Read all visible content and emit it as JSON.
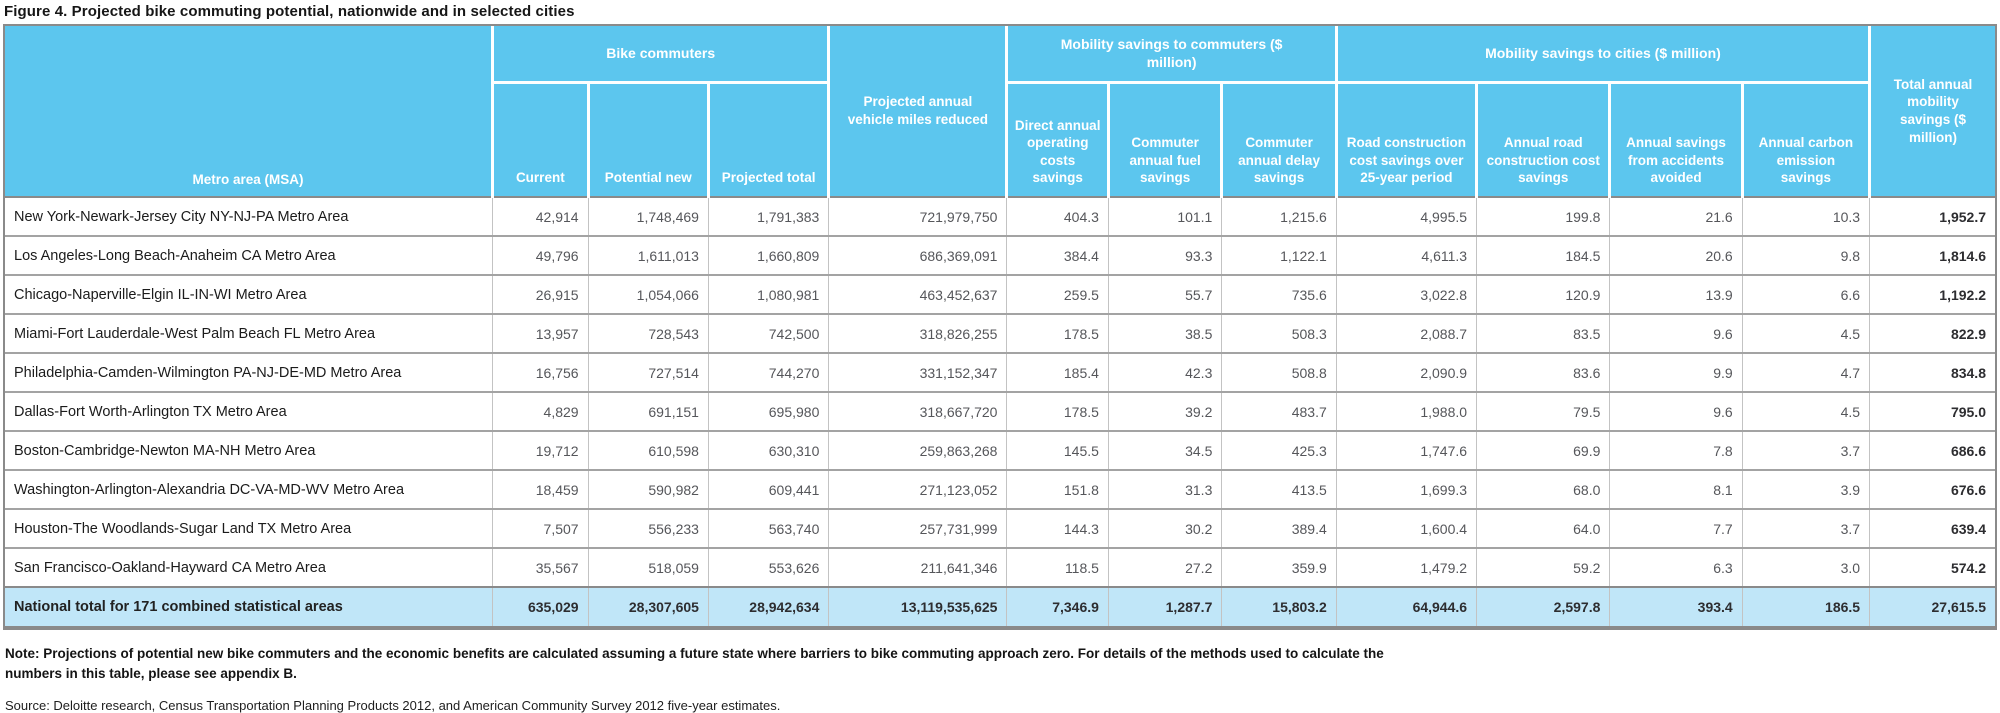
{
  "colors": {
    "header_blue": "#5cc6ee",
    "total_row_blue": "#c0e6f8",
    "frame_gray": "#8a8a8a",
    "number_text": "#55565a"
  },
  "chart_data": {
    "type": "table",
    "title": "Figure 4. Projected bike commuting potential, nationwide and in selected cities",
    "header": {
      "metro": "Metro area (MSA)",
      "vehicle_miles": "Projected annual vehicle miles reduced",
      "total": "Total annual mobility savings ($ million)",
      "groups": [
        {
          "label": "Bike commuters",
          "cols": [
            "Current",
            "Potential new",
            "Projected total"
          ]
        },
        {
          "label": "Mobility savings to commuters ($ million)",
          "cols": [
            "Direct annual operating costs savings",
            "Commuter annual fuel savings",
            "Commuter annual delay savings"
          ]
        },
        {
          "label": "Mobility savings to cities ($ million)",
          "cols": [
            "Road construction cost savings over 25-year period",
            "Annual road construction cost savings",
            "Annual savings from accidents avoided",
            "Annual carbon emission savings"
          ]
        }
      ]
    },
    "rows": [
      {
        "metro": "New York-Newark-Jersey City NY-NJ-PA Metro Area",
        "values": [
          "42,914",
          "1,748,469",
          "1,791,383",
          "721,979,750",
          "404.3",
          "101.1",
          "1,215.6",
          "4,995.5",
          "199.8",
          "21.6",
          "10.3",
          "1,952.7"
        ]
      },
      {
        "metro": "Los Angeles-Long Beach-Anaheim CA Metro Area",
        "values": [
          "49,796",
          "1,611,013",
          "1,660,809",
          "686,369,091",
          "384.4",
          "93.3",
          "1,122.1",
          "4,611.3",
          "184.5",
          "20.6",
          "9.8",
          "1,814.6"
        ]
      },
      {
        "metro": "Chicago-Naperville-Elgin IL-IN-WI Metro Area",
        "values": [
          "26,915",
          "1,054,066",
          "1,080,981",
          "463,452,637",
          "259.5",
          "55.7",
          "735.6",
          "3,022.8",
          "120.9",
          "13.9",
          "6.6",
          "1,192.2"
        ]
      },
      {
        "metro": "Miami-Fort Lauderdale-West Palm Beach FL Metro Area",
        "values": [
          "13,957",
          "728,543",
          "742,500",
          "318,826,255",
          "178.5",
          "38.5",
          "508.3",
          "2,088.7",
          "83.5",
          "9.6",
          "4.5",
          "822.9"
        ]
      },
      {
        "metro": "Philadelphia-Camden-Wilmington PA-NJ-DE-MD Metro Area",
        "values": [
          "16,756",
          "727,514",
          "744,270",
          "331,152,347",
          "185.4",
          "42.3",
          "508.8",
          "2,090.9",
          "83.6",
          "9.9",
          "4.7",
          "834.8"
        ]
      },
      {
        "metro": "Dallas-Fort Worth-Arlington TX Metro Area",
        "values": [
          "4,829",
          "691,151",
          "695,980",
          "318,667,720",
          "178.5",
          "39.2",
          "483.7",
          "1,988.0",
          "79.5",
          "9.6",
          "4.5",
          "795.0"
        ]
      },
      {
        "metro": "Boston-Cambridge-Newton MA-NH Metro Area",
        "values": [
          "19,712",
          "610,598",
          "630,310",
          "259,863,268",
          "145.5",
          "34.5",
          "425.3",
          "1,747.6",
          "69.9",
          "7.8",
          "3.7",
          "686.6"
        ]
      },
      {
        "metro": "Washington-Arlington-Alexandria DC-VA-MD-WV Metro Area",
        "values": [
          "18,459",
          "590,982",
          "609,441",
          "271,123,052",
          "151.8",
          "31.3",
          "413.5",
          "1,699.3",
          "68.0",
          "8.1",
          "3.9",
          "676.6"
        ]
      },
      {
        "metro": "Houston-The Woodlands-Sugar Land TX Metro Area",
        "values": [
          "7,507",
          "556,233",
          "563,740",
          "257,731,999",
          "144.3",
          "30.2",
          "389.4",
          "1,600.4",
          "64.0",
          "7.7",
          "3.7",
          "639.4"
        ]
      },
      {
        "metro": "San Francisco-Oakland-Hayward CA Metro Area",
        "values": [
          "35,567",
          "518,059",
          "553,626",
          "211,641,346",
          "118.5",
          "27.2",
          "359.9",
          "1,479.2",
          "59.2",
          "6.3",
          "3.0",
          "574.2"
        ]
      }
    ],
    "total_row": {
      "metro": "National total for 171 combined statistical areas",
      "values": [
        "635,029",
        "28,307,605",
        "28,942,634",
        "13,119,535,625",
        "7,346.9",
        "1,287.7",
        "15,803.2",
        "64,944.6",
        "2,597.8",
        "393.4",
        "186.5",
        "27,615.5"
      ]
    }
  },
  "notes": {
    "note": "Note: Projections of potential new bike commuters and the economic benefits are calculated assuming a future state  where barriers to bike commuting approach zero. For details of the methods used to calculate the numbers in this table, please see appendix B.",
    "source": "Source: Deloitte research, Census Transportation Planning Products 2012, and American Community Survey 2012 five-year estimates."
  }
}
